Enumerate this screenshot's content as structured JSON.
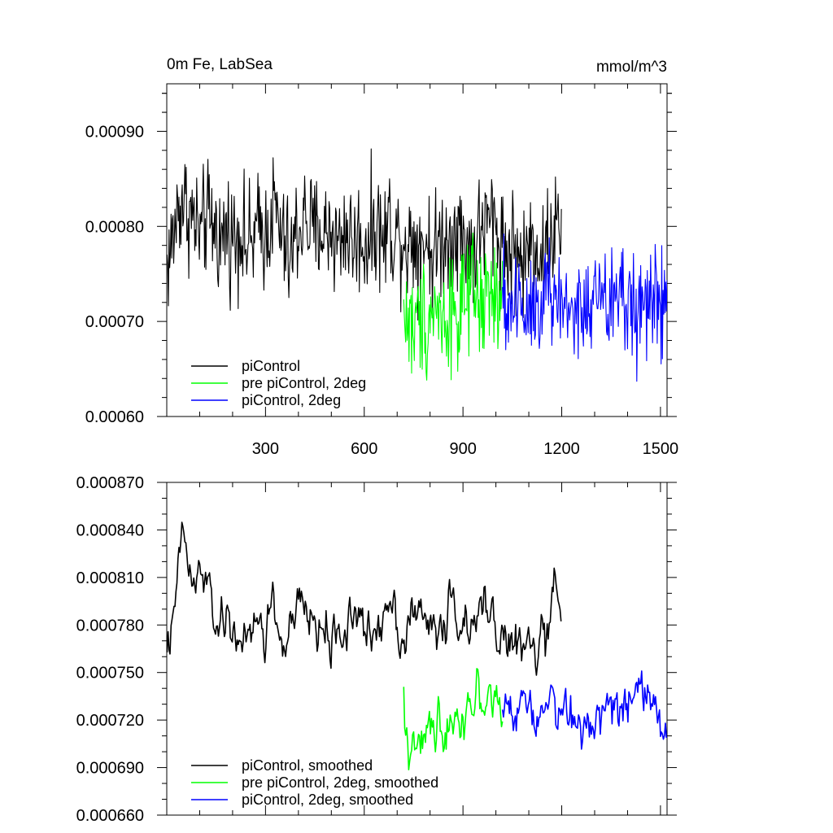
{
  "chart_data": [
    {
      "type": "line",
      "title_left": "0m Fe, LabSea",
      "title_right": "mmol/m^3",
      "xlabel": "",
      "ylabel": "",
      "xlim": [
        0,
        1520
      ],
      "ylim": [
        0.0006,
        0.00095
      ],
      "x_ticks": [
        300,
        600,
        900,
        1200,
        1500
      ],
      "y_ticks": [
        0.0006,
        0.0007,
        0.0008,
        0.0009
      ],
      "y_tick_labels": [
        "0.00060",
        "0.00070",
        "0.00080",
        "0.00090"
      ],
      "legend_position": "bottom-left",
      "series": [
        {
          "name": "piControl",
          "color": "#000000",
          "x_range": [
            1,
            1200
          ],
          "points": [
            [
              1,
              0.00076
            ],
            [
              15,
              0.00078
            ],
            [
              30,
              0.00081
            ],
            [
              45,
              0.00083
            ],
            [
              60,
              0.00082
            ],
            [
              75,
              0.00081
            ],
            [
              90,
              0.0008
            ],
            [
              105,
              0.00079
            ],
            [
              120,
              0.00081
            ],
            [
              135,
              0.0008
            ],
            [
              150,
              0.0008
            ],
            [
              165,
              0.00078
            ],
            [
              180,
              0.0008
            ],
            [
              195,
              0.00079
            ],
            [
              210,
              0.00079
            ],
            [
              225,
              0.0008
            ],
            [
              240,
              0.00078
            ],
            [
              255,
              0.00078
            ],
            [
              270,
              0.00079
            ],
            [
              285,
              0.0008
            ],
            [
              300,
              0.00079
            ],
            [
              315,
              0.00081
            ],
            [
              330,
              0.00082
            ],
            [
              345,
              0.00079
            ],
            [
              360,
              0.00078
            ],
            [
              375,
              0.00076
            ],
            [
              390,
              0.00079
            ],
            [
              405,
              0.0008
            ],
            [
              420,
              0.00081
            ],
            [
              435,
              0.0008
            ],
            [
              450,
              0.00079
            ],
            [
              465,
              0.0008
            ],
            [
              480,
              0.00079
            ],
            [
              495,
              0.0008
            ],
            [
              510,
              0.00079
            ],
            [
              525,
              0.00078
            ],
            [
              540,
              0.0008
            ],
            [
              555,
              0.00079
            ],
            [
              570,
              0.00078
            ],
            [
              585,
              0.00079
            ],
            [
              600,
              0.00078
            ],
            [
              615,
              0.00079
            ],
            [
              630,
              0.0008
            ],
            [
              645,
              0.0008
            ],
            [
              660,
              0.00078
            ],
            [
              675,
              0.00081
            ],
            [
              690,
              0.00079
            ],
            [
              705,
              0.00079
            ],
            [
              720,
              0.00079
            ],
            [
              735,
              0.00078
            ],
            [
              750,
              0.00079
            ],
            [
              765,
              0.00078
            ],
            [
              780,
              0.00079
            ],
            [
              795,
              0.00078
            ],
            [
              810,
              0.00077
            ],
            [
              825,
              0.00078
            ],
            [
              840,
              0.00079
            ],
            [
              855,
              0.00078
            ],
            [
              870,
              0.0008
            ],
            [
              885,
              0.0008
            ],
            [
              900,
              0.00078
            ],
            [
              915,
              0.00079
            ],
            [
              930,
              0.00077
            ],
            [
              945,
              0.00079
            ],
            [
              960,
              0.0008
            ],
            [
              975,
              0.0008
            ],
            [
              990,
              0.00081
            ],
            [
              1005,
              0.00079
            ],
            [
              1020,
              0.00079
            ],
            [
              1035,
              0.00077
            ],
            [
              1050,
              0.00078
            ],
            [
              1065,
              0.00077
            ],
            [
              1080,
              0.00076
            ],
            [
              1095,
              0.00077
            ],
            [
              1110,
              0.00079
            ],
            [
              1125,
              0.00078
            ],
            [
              1140,
              0.00076
            ],
            [
              1155,
              0.00078
            ],
            [
              1170,
              0.00079
            ],
            [
              1185,
              0.0008
            ],
            [
              1200,
              0.00079
            ]
          ]
        },
        {
          "name": "pre piControl, 2deg",
          "color": "#00ff00",
          "x_range": [
            720,
            1020
          ],
          "points": [
            [
              720,
              0.00071
            ],
            [
              735,
              0.0007
            ],
            [
              750,
              0.00069
            ],
            [
              765,
              0.0007
            ],
            [
              780,
              0.00071
            ],
            [
              795,
              0.0007
            ],
            [
              810,
              0.00072
            ],
            [
              825,
              0.00071
            ],
            [
              840,
              0.0007
            ],
            [
              855,
              0.00071
            ],
            [
              870,
              0.00072
            ],
            [
              885,
              0.0007
            ],
            [
              900,
              0.00072
            ],
            [
              915,
              0.00071
            ],
            [
              930,
              0.00073
            ],
            [
              945,
              0.00072
            ],
            [
              960,
              0.00071
            ],
            [
              975,
              0.00073
            ],
            [
              990,
              0.00072
            ],
            [
              1005,
              0.00072
            ],
            [
              1020,
              0.00071
            ]
          ]
        },
        {
          "name": "piControl, 2deg",
          "color": "#0000ff",
          "x_range": [
            1020,
            1520
          ],
          "points": [
            [
              1020,
              0.00072
            ],
            [
              1035,
              0.00071
            ],
            [
              1050,
              0.00072
            ],
            [
              1065,
              0.00073
            ],
            [
              1080,
              0.00071
            ],
            [
              1095,
              0.00072
            ],
            [
              1110,
              0.00072
            ],
            [
              1125,
              0.00073
            ],
            [
              1140,
              0.00072
            ],
            [
              1155,
              0.00074
            ],
            [
              1170,
              0.00072
            ],
            [
              1185,
              0.00073
            ],
            [
              1200,
              0.00071
            ],
            [
              1215,
              0.00072
            ],
            [
              1230,
              0.00071
            ],
            [
              1245,
              0.00072
            ],
            [
              1260,
              0.0007
            ],
            [
              1275,
              0.00071
            ],
            [
              1290,
              0.00072
            ],
            [
              1305,
              0.00073
            ],
            [
              1320,
              0.00072
            ],
            [
              1335,
              0.00071
            ],
            [
              1350,
              0.00072
            ],
            [
              1365,
              0.00073
            ],
            [
              1380,
              0.00073
            ],
            [
              1395,
              0.00072
            ],
            [
              1410,
              0.00071
            ],
            [
              1425,
              0.00072
            ],
            [
              1440,
              0.00071
            ],
            [
              1455,
              0.00072
            ],
            [
              1470,
              0.00073
            ],
            [
              1485,
              0.00072
            ],
            [
              1500,
              0.00071
            ],
            [
              1515,
              0.00072
            ],
            [
              1520,
              0.00071
            ]
          ]
        }
      ]
    },
    {
      "type": "line",
      "xlim": [
        0,
        1520
      ],
      "ylim": [
        0.00066,
        0.00087
      ],
      "x_ticks": [
        300,
        600,
        900,
        1200,
        1500
      ],
      "y_ticks": [
        0.00066,
        0.00069,
        0.00072,
        0.00075,
        0.00078,
        0.00081,
        0.00084,
        0.00087
      ],
      "y_tick_labels": [
        "0.000660",
        "0.000690",
        "0.000720",
        "0.000750",
        "0.000780",
        "0.000810",
        "0.000840",
        "0.000870"
      ],
      "legend_position": "bottom-left",
      "series": [
        {
          "name": "piControl, smoothed",
          "color": "#000000",
          "x_range": [
            1,
            1200
          ],
          "points": [
            [
              1,
              0.00077
            ],
            [
              20,
              0.000775
            ],
            [
              40,
              0.000828
            ],
            [
              55,
              0.000835
            ],
            [
              70,
              0.000812
            ],
            [
              85,
              0.0008
            ],
            [
              100,
              0.000815
            ],
            [
              120,
              0.000805
            ],
            [
              140,
              0.00079
            ],
            [
              160,
              0.000775
            ],
            [
              180,
              0.000785
            ],
            [
              200,
              0.000772
            ],
            [
              220,
              0.000778
            ],
            [
              240,
              0.000765
            ],
            [
              260,
              0.000772
            ],
            [
              280,
              0.000785
            ],
            [
              300,
              0.00077
            ],
            [
              320,
              0.0008
            ],
            [
              340,
              0.000775
            ],
            [
              360,
              0.000765
            ],
            [
              380,
              0.000778
            ],
            [
              400,
              0.00079
            ],
            [
              420,
              0.000788
            ],
            [
              440,
              0.000785
            ],
            [
              460,
              0.000775
            ],
            [
              480,
              0.000782
            ],
            [
              500,
              0.000765
            ],
            [
              520,
              0.00078
            ],
            [
              540,
              0.000772
            ],
            [
              560,
              0.00079
            ],
            [
              580,
              0.000785
            ],
            [
              600,
              0.000775
            ],
            [
              620,
              0.00077
            ],
            [
              640,
              0.00078
            ],
            [
              660,
              0.000788
            ],
            [
              680,
              0.000805
            ],
            [
              700,
              0.000782
            ],
            [
              720,
              0.00077
            ],
            [
              740,
              0.00079
            ],
            [
              760,
              0.000782
            ],
            [
              780,
              0.000785
            ],
            [
              800,
              0.00078
            ],
            [
              820,
              0.000778
            ],
            [
              840,
              0.000775
            ],
            [
              860,
              0.000795
            ],
            [
              880,
              0.00079
            ],
            [
              900,
              0.00078
            ],
            [
              920,
              0.000772
            ],
            [
              940,
              0.000778
            ],
            [
              960,
              0.000792
            ],
            [
              980,
              0.000795
            ],
            [
              1000,
              0.00078
            ],
            [
              1020,
              0.000775
            ],
            [
              1040,
              0.000765
            ],
            [
              1060,
              0.00077
            ],
            [
              1080,
              0.00076
            ],
            [
              1100,
              0.00077
            ],
            [
              1120,
              0.000758
            ],
            [
              1140,
              0.000775
            ],
            [
              1160,
              0.00077
            ],
            [
              1175,
              0.0008
            ],
            [
              1190,
              0.00079
            ],
            [
              1200,
              0.0008
            ]
          ]
        },
        {
          "name": "pre piControl, 2deg, smoothed",
          "color": "#00ff00",
          "x_range": [
            720,
            1020
          ],
          "points": [
            [
              720,
              0.000735
            ],
            [
              735,
              0.0007
            ],
            [
              750,
              0.000715
            ],
            [
              765,
              0.00069
            ],
            [
              780,
              0.00071
            ],
            [
              795,
              0.00072
            ],
            [
              810,
              0.000705
            ],
            [
              825,
              0.000725
            ],
            [
              840,
              0.000712
            ],
            [
              855,
              0.00073
            ],
            [
              870,
              0.000715
            ],
            [
              885,
              0.000728
            ],
            [
              900,
              0.00072
            ],
            [
              915,
              0.000735
            ],
            [
              930,
              0.000725
            ],
            [
              945,
              0.000738
            ],
            [
              960,
              0.00073
            ],
            [
              975,
              0.00074
            ],
            [
              990,
              0.000728
            ],
            [
              1005,
              0.000735
            ],
            [
              1020,
              0.00072
            ]
          ]
        },
        {
          "name": "piControl, 2deg, smoothed",
          "color": "#0000ff",
          "x_range": [
            1020,
            1520
          ],
          "points": [
            [
              1020,
              0.00072
            ],
            [
              1040,
              0.000735
            ],
            [
              1060,
              0.000725
            ],
            [
              1080,
              0.00074
            ],
            [
              1100,
              0.00073
            ],
            [
              1120,
              0.00072
            ],
            [
              1140,
              0.000735
            ],
            [
              1160,
              0.000745
            ],
            [
              1180,
              0.00073
            ],
            [
              1200,
              0.000725
            ],
            [
              1220,
              0.000718
            ],
            [
              1240,
              0.000725
            ],
            [
              1260,
              0.000712
            ],
            [
              1280,
              0.00072
            ],
            [
              1300,
              0.00073
            ],
            [
              1320,
              0.000725
            ],
            [
              1340,
              0.000735
            ],
            [
              1360,
              0.000728
            ],
            [
              1380,
              0.000738
            ],
            [
              1400,
              0.00073
            ],
            [
              1420,
              0.000725
            ],
            [
              1440,
              0.000735
            ],
            [
              1460,
              0.00074
            ],
            [
              1480,
              0.000728
            ],
            [
              1500,
              0.00072
            ],
            [
              1520,
              0.000712
            ]
          ]
        }
      ]
    }
  ]
}
